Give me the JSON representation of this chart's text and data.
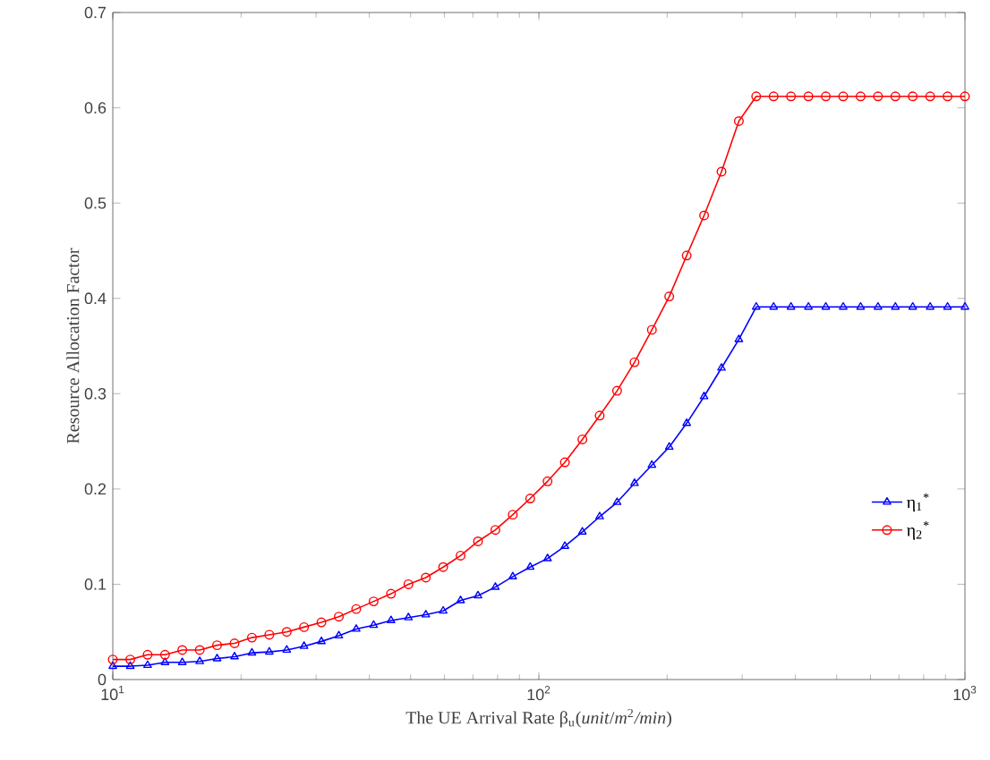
{
  "chart_data": {
    "type": "line",
    "xlabel": "The UE Arrival Rate β$_{u}$(*unit*/*m*$^{2}$*/min*)",
    "ylabel": "Resource Allocation Factor",
    "x": [
      10,
      10.99,
      12.07,
      13.26,
      14.56,
      16.0,
      17.57,
      19.31,
      21.21,
      23.3,
      25.6,
      28.11,
      30.88,
      33.93,
      37.27,
      40.94,
      44.98,
      49.41,
      54.29,
      59.63,
      65.51,
      71.97,
      79.06,
      86.85,
      95.41,
      104.8,
      115.1,
      126.5,
      138.9,
      152.6,
      167.7,
      184.2,
      202.3,
      222.3,
      244.2,
      268.3,
      294.7,
      323.7,
      355.6,
      390.7,
      429.2,
      471.5,
      517.9,
      569.0,
      625.1,
      686.6,
      754.3,
      828.6,
      910.3,
      1000
    ],
    "series": [
      {
        "name": "η$_{1}$$^{*}$",
        "color": "#0000ff",
        "marker": "triangle",
        "values": [
          0.014,
          0.014,
          0.015,
          0.018,
          0.018,
          0.019,
          0.022,
          0.024,
          0.028,
          0.029,
          0.031,
          0.035,
          0.04,
          0.046,
          0.053,
          0.057,
          0.062,
          0.065,
          0.068,
          0.072,
          0.083,
          0.088,
          0.097,
          0.108,
          0.118,
          0.127,
          0.14,
          0.155,
          0.171,
          0.186,
          0.206,
          0.225,
          0.244,
          0.269,
          0.297,
          0.327,
          0.357,
          0.391,
          0.391,
          0.391,
          0.391,
          0.391,
          0.391,
          0.391,
          0.391,
          0.391,
          0.391,
          0.391,
          0.391,
          0.391
        ]
      },
      {
        "name": "η$_{2}$$^{*}$",
        "color": "#ff0000",
        "marker": "circle",
        "values": [
          0.021,
          0.021,
          0.026,
          0.026,
          0.031,
          0.031,
          0.036,
          0.038,
          0.044,
          0.047,
          0.05,
          0.055,
          0.06,
          0.066,
          0.074,
          0.082,
          0.09,
          0.1,
          0.107,
          0.118,
          0.13,
          0.145,
          0.157,
          0.173,
          0.19,
          0.208,
          0.228,
          0.252,
          0.277,
          0.303,
          0.333,
          0.367,
          0.402,
          0.445,
          0.487,
          0.533,
          0.586,
          0.612,
          0.612,
          0.612,
          0.612,
          0.612,
          0.612,
          0.612,
          0.612,
          0.612,
          0.612,
          0.612,
          0.612,
          0.612
        ]
      }
    ],
    "log": "x",
    "xlim": [
      10,
      1000
    ],
    "xticks": [
      {
        "value": 10,
        "label": "10$^{1}$"
      },
      {
        "value": 100,
        "label": "10$^{2}$"
      },
      {
        "value": 1000,
        "label": "10$^{3}$"
      }
    ],
    "ylim": [
      0,
      0.7
    ],
    "yticks": [
      0,
      0.1,
      0.2,
      0.3,
      0.4,
      0.5,
      0.6,
      0.7
    ],
    "legend": "right",
    "grid": false,
    "line_style": "solid"
  }
}
